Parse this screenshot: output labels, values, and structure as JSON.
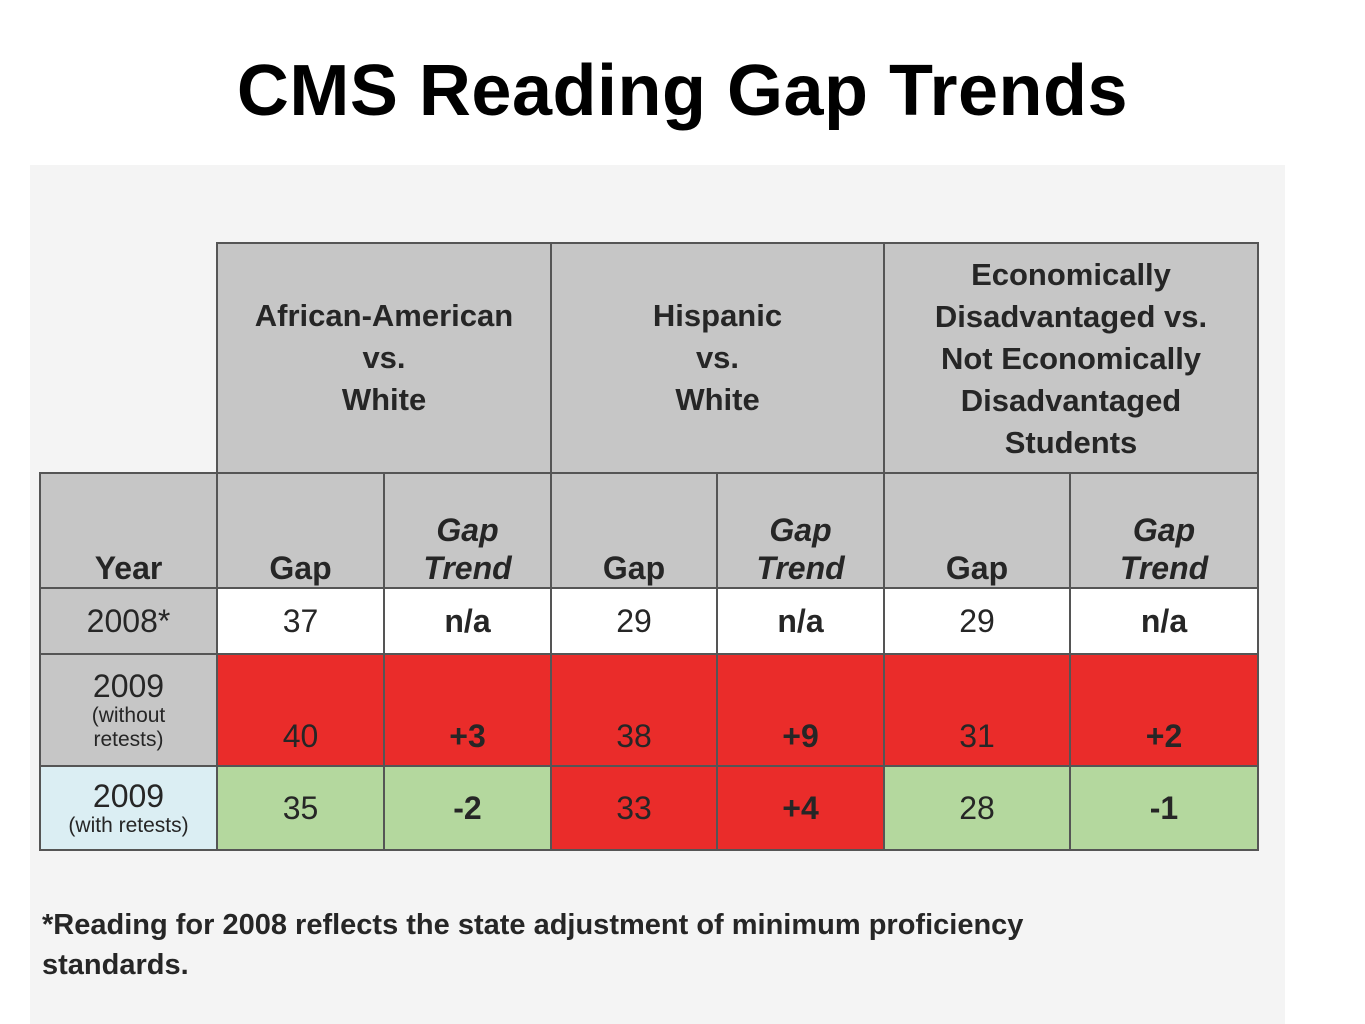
{
  "title": "CMS Reading Gap Trends",
  "table": {
    "groups": [
      {
        "lines": [
          "African-American",
          "vs.",
          "White"
        ]
      },
      {
        "lines": [
          "Hispanic",
          "vs.",
          "White"
        ]
      },
      {
        "lines": [
          "Economically",
          "Disadvantaged vs.",
          "Not Economically",
          "Disadvantaged",
          "Students"
        ]
      }
    ],
    "headers": {
      "year": "Year",
      "gap": "Gap",
      "trend_line1": "Gap",
      "trend_line2": "Trend"
    },
    "rows": [
      {
        "year": "2008*",
        "year_sub": [
          "",
          ""
        ],
        "cells": [
          "37",
          "n/a",
          "29",
          "n/a",
          "29",
          "n/a"
        ],
        "colors": [
          "white",
          "white",
          "white",
          "white",
          "white",
          "white"
        ]
      },
      {
        "year": "2009",
        "year_sub": [
          "(without",
          "retests)"
        ],
        "cells": [
          "40",
          "+3",
          "38",
          "+9",
          "31",
          "+2"
        ],
        "colors": [
          "red",
          "red",
          "red",
          "red",
          "red",
          "red"
        ]
      },
      {
        "year": "2009",
        "year_sub": [
          "(with retests)",
          ""
        ],
        "cells": [
          "35",
          "-2",
          "33",
          "+4",
          "28",
          "-1"
        ],
        "colors": [
          "green",
          "green",
          "red",
          "red",
          "green",
          "green"
        ]
      }
    ],
    "status_colors": {
      "white": "#ffffff",
      "red": "#ea2c2a",
      "green": "#b4d89e",
      "header_gray": "#c6c6c6",
      "year_light_blue": "#dbeef3"
    }
  },
  "footnote": {
    "line1": "*Reading for 2008 reflects the state adjustment of minimum proficiency",
    "line2": "standards."
  }
}
